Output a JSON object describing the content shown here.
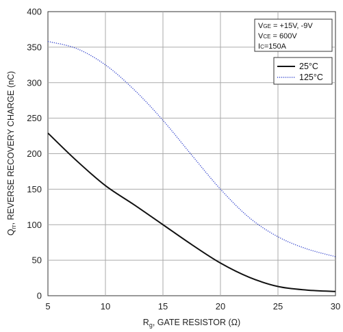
{
  "chart_data": {
    "type": "line",
    "xlabel": "R",
    "xlabel_sub": "g",
    "xlabel_rest": ", GATE RESISTOR (Ω)",
    "ylabel": "Q",
    "ylabel_sub": "rr",
    "ylabel_rest": ", REVERSE RECOVERY CHARGE (nC)",
    "xlim": [
      5,
      30
    ],
    "ylim": [
      0,
      400
    ],
    "xticks": [
      5,
      10,
      15,
      20,
      25,
      30
    ],
    "yticks": [
      0,
      50,
      100,
      150,
      200,
      250,
      300,
      350,
      400
    ],
    "grid": true,
    "legend_placement": "top-right",
    "conditions": [
      {
        "main": "V",
        "sub": "GE",
        "rest": " = +15V, -9V"
      },
      {
        "main": "V",
        "sub": "CE",
        "rest": " = 600V"
      },
      {
        "main": "I",
        "sub": "C",
        "rest": "=150A"
      }
    ],
    "series": [
      {
        "name": "25°C",
        "style": "solid",
        "color": "#111111",
        "x": [
          5,
          7.5,
          10,
          12.5,
          15,
          17.5,
          20,
          22.5,
          25,
          27.5,
          30
        ],
        "y": [
          229,
          190,
          155,
          128,
          100,
          72,
          46,
          26,
          13,
          8,
          6
        ]
      },
      {
        "name": "125°C",
        "style": "dotted",
        "color": "#3344cc",
        "x": [
          5,
          7.5,
          10,
          12.5,
          15,
          17.5,
          20,
          22.5,
          25,
          27.5,
          30
        ],
        "y": [
          358,
          348,
          325,
          290,
          247,
          198,
          150,
          110,
          83,
          66,
          55
        ]
      }
    ]
  }
}
